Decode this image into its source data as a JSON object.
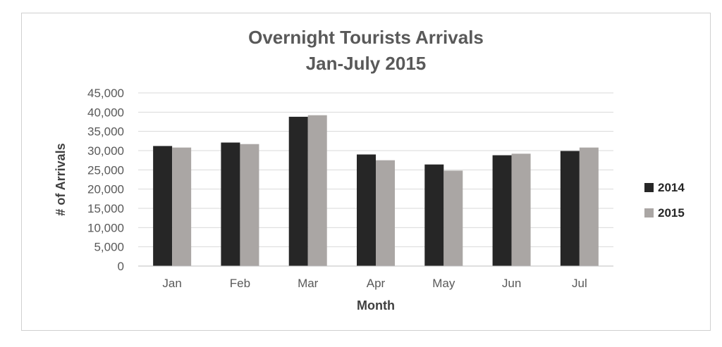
{
  "chart_data": {
    "type": "bar",
    "title": [
      "Overnight Tourists Arrivals",
      "Jan-July 2015"
    ],
    "xlabel": "Month",
    "ylabel": "# of Arrivals",
    "categories": [
      "Jan",
      "Feb",
      "Mar",
      "Apr",
      "May",
      "Jun",
      "Jul"
    ],
    "series": [
      {
        "name": "2014",
        "values": [
          31200,
          32100,
          38800,
          29000,
          26400,
          28800,
          29900
        ],
        "color": "#262626"
      },
      {
        "name": "2015",
        "values": [
          30800,
          31700,
          39200,
          27500,
          24800,
          29200,
          30800
        ],
        "color": "#aaa6a4"
      }
    ],
    "ylim": [
      0,
      45000
    ],
    "yticks": [
      "0",
      "5,000",
      "10,000",
      "15,000",
      "20,000",
      "25,000",
      "30,000",
      "35,000",
      "40,000",
      "45,000"
    ],
    "grid": true,
    "legend_position": "right",
    "colors": {
      "gridline": "#d9d9d9",
      "axis": "#bfbfbf"
    }
  }
}
